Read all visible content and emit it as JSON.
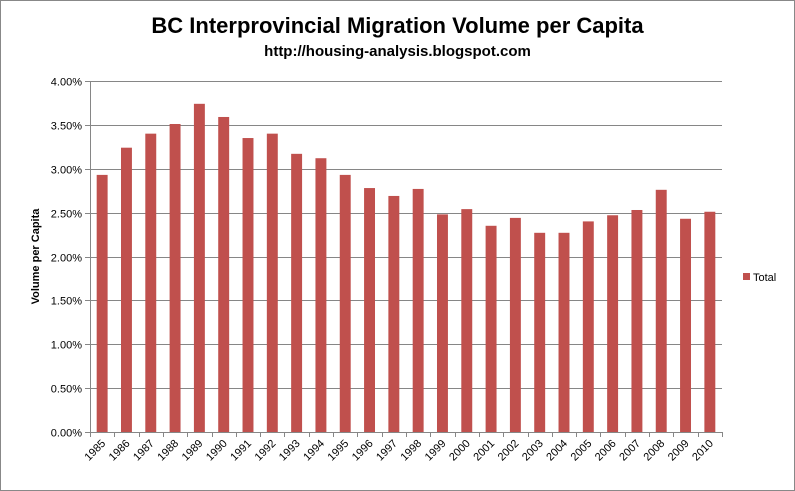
{
  "chart_data": {
    "type": "bar",
    "title": "BC Interprovincial Migration Volume per Capita",
    "subtitle": "http://housing-analysis.blogspot.com",
    "xlabel": "",
    "ylabel": "Volume per Capita",
    "ylim": [
      0,
      4
    ],
    "yticks": [
      "0.00%",
      "0.50%",
      "1.00%",
      "1.50%",
      "2.00%",
      "2.50%",
      "3.00%",
      "3.50%",
      "4.00%"
    ],
    "grid": true,
    "legend": {
      "position": "right",
      "entries": [
        "Total"
      ]
    },
    "color": "#c0504d",
    "categories": [
      "1985",
      "1986",
      "1987",
      "1988",
      "1989",
      "1990",
      "1991",
      "1992",
      "1993",
      "1994",
      "1995",
      "1996",
      "1997",
      "1998",
      "1999",
      "2000",
      "2001",
      "2002",
      "2003",
      "2004",
      "2005",
      "2006",
      "2007",
      "2008",
      "2009",
      "2010"
    ],
    "series": [
      {
        "name": "Total",
        "values": [
          2.93,
          3.24,
          3.4,
          3.51,
          3.74,
          3.59,
          3.35,
          3.4,
          3.17,
          3.12,
          2.93,
          2.78,
          2.69,
          2.77,
          2.48,
          2.54,
          2.35,
          2.44,
          2.27,
          2.27,
          2.4,
          2.47,
          2.53,
          2.76,
          2.43,
          2.51
        ]
      }
    ]
  }
}
